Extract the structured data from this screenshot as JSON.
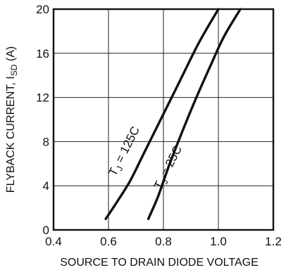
{
  "chart_data": {
    "type": "line",
    "title": "",
    "xlabel": "SOURCE TO DRAIN DIODE VOLTAGE",
    "ylabel_main": "FLYBACK CURRENT, I",
    "ylabel_sub": "SD",
    "ylabel_unit": " (A)",
    "xlim": [
      0.4,
      1.2
    ],
    "ylim": [
      0,
      20
    ],
    "x_ticks": [
      0.4,
      0.6,
      0.8,
      1.0,
      1.2
    ],
    "x_tick_labels": [
      "0.4",
      "0.6",
      "0.8",
      "1.0",
      "1.2"
    ],
    "y_ticks": [
      0,
      4,
      8,
      12,
      16,
      20
    ],
    "y_tick_labels": [
      "0",
      "4",
      "8",
      "12",
      "16",
      "20"
    ],
    "grid": true,
    "series": [
      {
        "label_main": "T",
        "label_sub": "J",
        "label_rest": " = 125C",
        "x": [
          0.59,
          0.63,
          0.68,
          0.73,
          0.79,
          0.86,
          0.93,
          1.0
        ],
        "y": [
          1.0,
          2.5,
          4.5,
          7.0,
          10.0,
          13.5,
          17.0,
          20.0
        ]
      },
      {
        "label_main": "T",
        "label_sub": "J",
        "label_rest": " = 25C",
        "x": [
          0.745,
          0.78,
          0.82,
          0.87,
          0.92,
          0.97,
          1.02,
          1.08
        ],
        "y": [
          1.0,
          3.0,
          5.8,
          9.0,
          12.0,
          14.8,
          17.5,
          20.0
        ]
      }
    ]
  }
}
